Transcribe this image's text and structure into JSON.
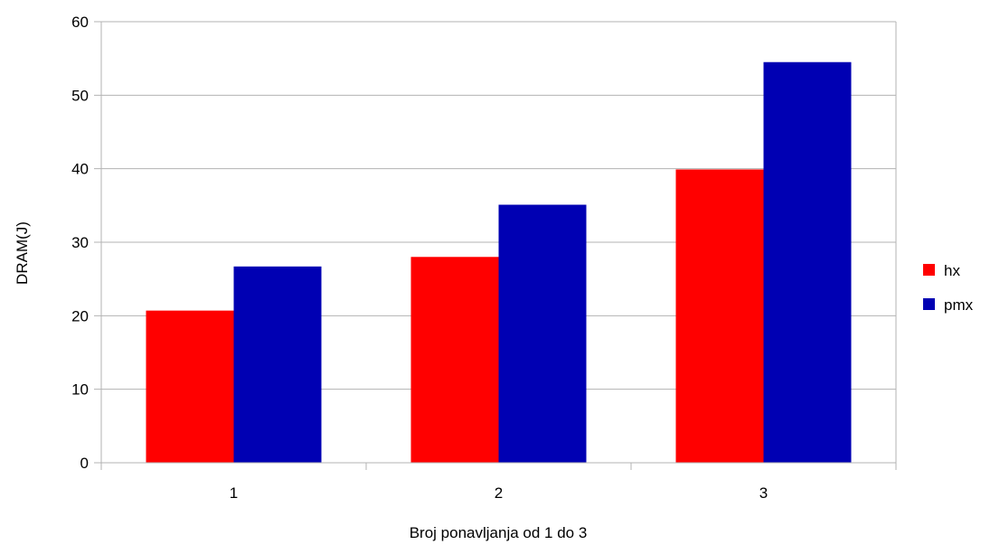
{
  "chart_data": {
    "type": "bar",
    "title": "",
    "xlabel": "Broj ponavljanja od 1 do 3",
    "ylabel": "DRAM(J)",
    "categories": [
      "1",
      "2",
      "3"
    ],
    "series": [
      {
        "name": "hx",
        "color": "#ff0000",
        "values": [
          20.7,
          28.0,
          39.9
        ]
      },
      {
        "name": "pmx",
        "color": "#0000b3",
        "values": [
          26.7,
          35.1,
          54.5
        ]
      }
    ],
    "ylim": [
      0,
      60
    ],
    "yticks": [
      0,
      10,
      20,
      30,
      40,
      50,
      60
    ],
    "grid": true,
    "legend": "right"
  }
}
